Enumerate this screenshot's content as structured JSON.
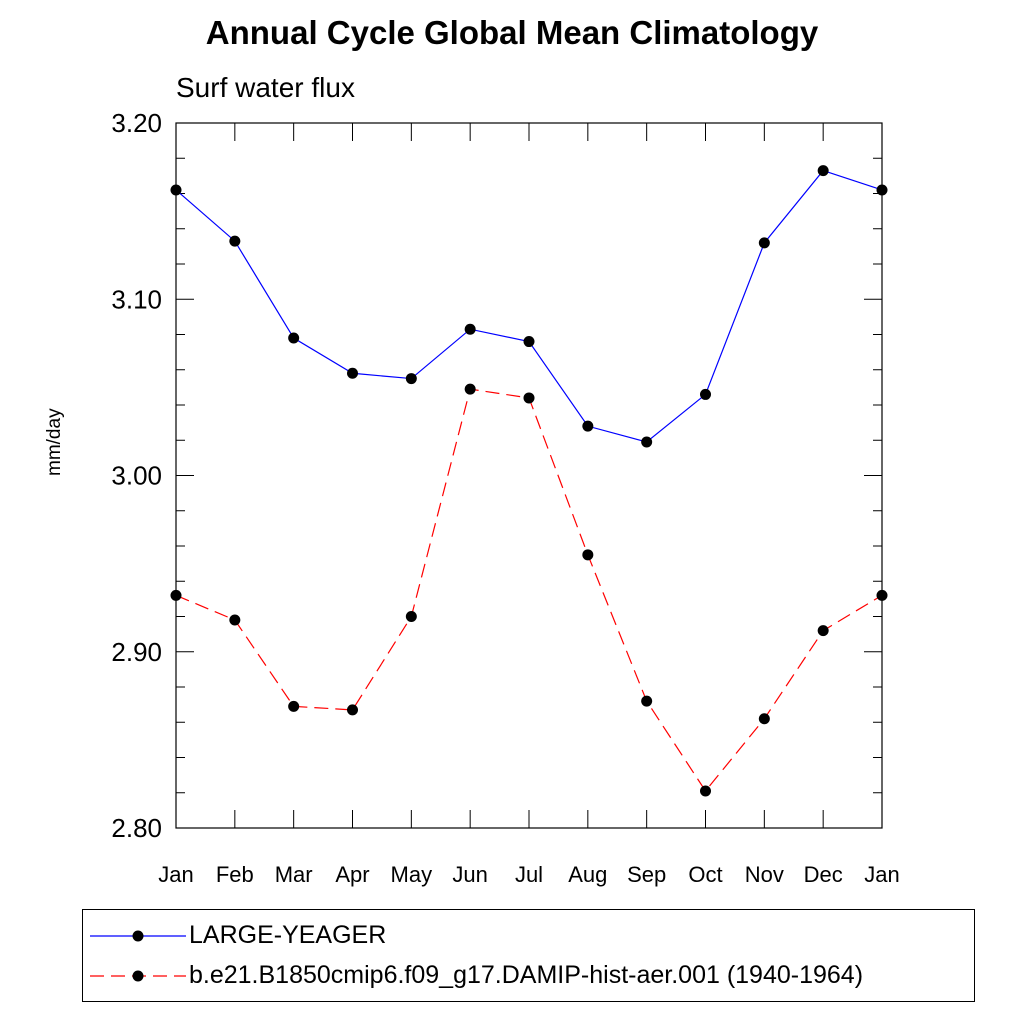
{
  "chart_data": {
    "type": "line",
    "title": "Annual Cycle Global Mean Climatology",
    "subtitle": "Surf water flux",
    "xlabel": "",
    "ylabel": "mm/day",
    "categories": [
      "Jan",
      "Feb",
      "Mar",
      "Apr",
      "May",
      "Jun",
      "Jul",
      "Aug",
      "Sep",
      "Oct",
      "Nov",
      "Dec",
      "Jan"
    ],
    "ylim": [
      2.8,
      3.2
    ],
    "yticks": [
      "2.80",
      "2.90",
      "3.00",
      "3.10",
      "3.20"
    ],
    "grid": false,
    "legend_position": "bottom",
    "series": [
      {
        "name": "LARGE-YEAGER",
        "color": "#0000ff",
        "style": "solid",
        "marker": "filled-circle",
        "values": [
          3.162,
          3.133,
          3.078,
          3.058,
          3.055,
          3.083,
          3.076,
          3.028,
          3.019,
          3.046,
          3.132,
          3.173,
          3.162
        ]
      },
      {
        "name": "b.e21.B1850cmip6.f09_g17.DAMIP-hist-aer.001 (1940-1964)",
        "color": "#ff0000",
        "style": "dashed",
        "marker": "filled-circle",
        "values": [
          2.932,
          2.918,
          2.869,
          2.867,
          2.92,
          3.049,
          3.044,
          2.955,
          2.872,
          2.821,
          2.862,
          2.912,
          2.932
        ]
      }
    ]
  }
}
